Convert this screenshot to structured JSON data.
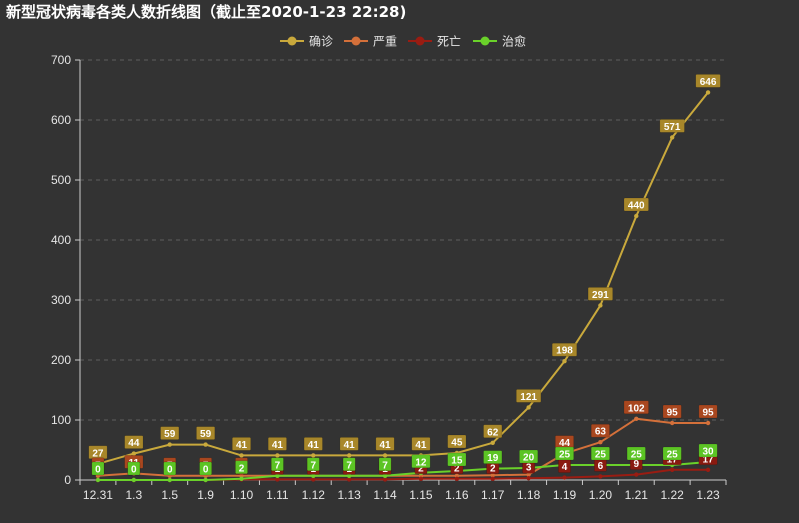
{
  "chart_data": {
    "type": "line",
    "title": "新型冠状病毒各类人数折线图（截止至2020-1-23 22:28)",
    "categories": [
      "12.31",
      "1.3",
      "1.5",
      "1.9",
      "1.10",
      "1.11",
      "1.12",
      "1.13",
      "1.14",
      "1.15",
      "1.16",
      "1.17",
      "1.18",
      "1.19",
      "1.20",
      "1.21",
      "1.22",
      "1.23"
    ],
    "ylim": [
      0,
      700
    ],
    "yticks": [
      0,
      100,
      200,
      300,
      400,
      500,
      600,
      700
    ],
    "grid": "horizontal-dashed",
    "legend_position": "top-center",
    "series": [
      {
        "name": "确诊",
        "color": "#c9a93c",
        "label_color": "#a8872a",
        "values": [
          27,
          44,
          59,
          59,
          41,
          41,
          41,
          41,
          41,
          41,
          45,
          62,
          121,
          198,
          291,
          440,
          571,
          646
        ]
      },
      {
        "name": "严重",
        "color": "#d4703a",
        "label_color": "#a9471f",
        "values": [
          7,
          11,
          7,
          7,
          7,
          7,
          7,
          7,
          7,
          7,
          7,
          8,
          9,
          44,
          63,
          102,
          95,
          95
        ]
      },
      {
        "name": "死亡",
        "color": "#9a1c12",
        "label_color": "#8a1a10",
        "values": [
          0,
          0,
          0,
          0,
          1,
          1,
          1,
          1,
          1,
          2,
          2,
          2,
          3,
          4,
          6,
          9,
          17,
          17
        ]
      },
      {
        "name": "治愈",
        "color": "#6ad12a",
        "label_color": "#5cc424",
        "values": [
          0,
          0,
          0,
          0,
          2,
          7,
          7,
          7,
          7,
          12,
          15,
          19,
          20,
          25,
          25,
          25,
          25,
          30
        ]
      }
    ]
  }
}
